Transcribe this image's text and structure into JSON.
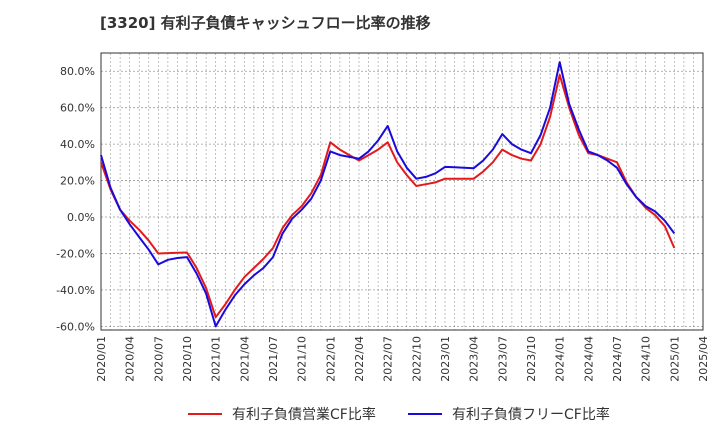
{
  "chart_data": {
    "type": "line",
    "title": "[3320]  有利子負債キャッシュフロー比率の推移",
    "xlabel": "",
    "ylabel": "",
    "ylim": [
      -62,
      90
    ],
    "yticks": [
      -60,
      -40,
      -20,
      0,
      20,
      40,
      60,
      80
    ],
    "ytick_labels": [
      "-60.0%",
      "-40.0%",
      "-20.0%",
      "0.0%",
      "20.0%",
      "40.0%",
      "60.0%",
      "80.0%"
    ],
    "xticks": [
      "2020/01",
      "2020/04",
      "2020/07",
      "2020/10",
      "2021/01",
      "2021/04",
      "2021/07",
      "2021/10",
      "2022/01",
      "2022/04",
      "2022/07",
      "2022/10",
      "2023/01",
      "2023/04",
      "2023/07",
      "2023/10",
      "2024/01",
      "2024/04",
      "2024/07",
      "2024/10",
      "2025/01",
      "2025/04"
    ],
    "grid": true,
    "legend_position": "bottom",
    "series": [
      {
        "name": "有利子負債営業CF比率",
        "color": "#e31a1c",
        "points": [
          [
            "2020/01",
            30
          ],
          [
            "2020/02",
            15
          ],
          [
            "2020/03",
            4
          ],
          [
            "2020/04",
            -2
          ],
          [
            "2020/05",
            -7
          ],
          [
            "2020/06",
            -13
          ],
          [
            "2020/07",
            -20
          ],
          [
            "2020/08",
            -19.8
          ],
          [
            "2020/09",
            -19.6
          ],
          [
            "2020/10",
            -19.5
          ],
          [
            "2020/11",
            -28
          ],
          [
            "2020/12",
            -39
          ],
          [
            "2021/01",
            -55
          ],
          [
            "2021/02",
            -48
          ],
          [
            "2021/03",
            -40
          ],
          [
            "2021/04",
            -33
          ],
          [
            "2021/05",
            -28
          ],
          [
            "2021/06",
            -23
          ],
          [
            "2021/07",
            -17
          ],
          [
            "2021/08",
            -6
          ],
          [
            "2021/09",
            1
          ],
          [
            "2021/10",
            6
          ],
          [
            "2021/11",
            13
          ],
          [
            "2021/12",
            23
          ],
          [
            "2022/01",
            41
          ],
          [
            "2022/02",
            37
          ],
          [
            "2022/03",
            34
          ],
          [
            "2022/04",
            31
          ],
          [
            "2022/05",
            34
          ],
          [
            "2022/06",
            37
          ],
          [
            "2022/07",
            41
          ],
          [
            "2022/08",
            30
          ],
          [
            "2022/09",
            23
          ],
          [
            "2022/10",
            17
          ],
          [
            "2022/11",
            18
          ],
          [
            "2022/12",
            19
          ],
          [
            "2023/01",
            21
          ],
          [
            "2023/02",
            21
          ],
          [
            "2023/03",
            21
          ],
          [
            "2023/04",
            21
          ],
          [
            "2023/05",
            25
          ],
          [
            "2023/06",
            30
          ],
          [
            "2023/07",
            37
          ],
          [
            "2023/08",
            34
          ],
          [
            "2023/09",
            32
          ],
          [
            "2023/10",
            31
          ],
          [
            "2023/11",
            40
          ],
          [
            "2023/12",
            55
          ],
          [
            "2024/01",
            78
          ],
          [
            "2024/02",
            60
          ],
          [
            "2024/03",
            45
          ],
          [
            "2024/04",
            35
          ],
          [
            "2024/05",
            34
          ],
          [
            "2024/06",
            32
          ],
          [
            "2024/07",
            30
          ],
          [
            "2024/08",
            19
          ],
          [
            "2024/09",
            11
          ],
          [
            "2024/10",
            5
          ],
          [
            "2024/11",
            1
          ],
          [
            "2024/12",
            -5
          ],
          [
            "2025/01",
            -17
          ]
        ]
      },
      {
        "name": "有利子負債フリーCF比率",
        "color": "#1a0adb",
        "points": [
          [
            "2020/01",
            34
          ],
          [
            "2020/02",
            16
          ],
          [
            "2020/03",
            4
          ],
          [
            "2020/04",
            -4
          ],
          [
            "2020/05",
            -11
          ],
          [
            "2020/06",
            -18
          ],
          [
            "2020/07",
            -26
          ],
          [
            "2020/08",
            -23.5
          ],
          [
            "2020/09",
            -22.5
          ],
          [
            "2020/10",
            -22
          ],
          [
            "2020/11",
            -31
          ],
          [
            "2020/12",
            -42
          ],
          [
            "2021/01",
            -60
          ],
          [
            "2021/02",
            -51
          ],
          [
            "2021/03",
            -43
          ],
          [
            "2021/04",
            -37
          ],
          [
            "2021/05",
            -32
          ],
          [
            "2021/06",
            -28
          ],
          [
            "2021/07",
            -22
          ],
          [
            "2021/08",
            -9
          ],
          [
            "2021/09",
            -1
          ],
          [
            "2021/10",
            4
          ],
          [
            "2021/11",
            10
          ],
          [
            "2021/12",
            20
          ],
          [
            "2022/01",
            36
          ],
          [
            "2022/02",
            34
          ],
          [
            "2022/03",
            33
          ],
          [
            "2022/04",
            32
          ],
          [
            "2022/05",
            36
          ],
          [
            "2022/06",
            42
          ],
          [
            "2022/07",
            50
          ],
          [
            "2022/08",
            36
          ],
          [
            "2022/09",
            27
          ],
          [
            "2022/10",
            21
          ],
          [
            "2022/11",
            22
          ],
          [
            "2022/12",
            24
          ],
          [
            "2023/01",
            27.5
          ],
          [
            "2023/02",
            27.3
          ],
          [
            "2023/03",
            27
          ],
          [
            "2023/04",
            26.8
          ],
          [
            "2023/05",
            31
          ],
          [
            "2023/06",
            37
          ],
          [
            "2023/07",
            45.5
          ],
          [
            "2023/08",
            40
          ],
          [
            "2023/09",
            37
          ],
          [
            "2023/10",
            35
          ],
          [
            "2023/11",
            45
          ],
          [
            "2023/12",
            60
          ],
          [
            "2024/01",
            85
          ],
          [
            "2024/02",
            62
          ],
          [
            "2024/03",
            48
          ],
          [
            "2024/04",
            36
          ],
          [
            "2024/05",
            34
          ],
          [
            "2024/06",
            31
          ],
          [
            "2024/07",
            27
          ],
          [
            "2024/08",
            18
          ],
          [
            "2024/09",
            11
          ],
          [
            "2024/10",
            6
          ],
          [
            "2024/11",
            3
          ],
          [
            "2024/12",
            -2
          ],
          [
            "2025/01",
            -9
          ]
        ]
      }
    ]
  }
}
